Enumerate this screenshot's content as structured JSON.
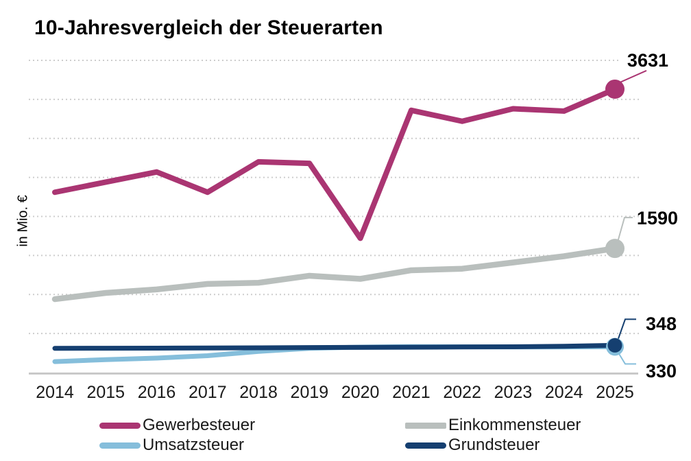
{
  "chart_data": {
    "type": "line",
    "title": "10-Jahresvergleich der Steuerarten",
    "ylabel": "in Mio. €",
    "categories": [
      "2014",
      "2015",
      "2016",
      "2017",
      "2018",
      "2019",
      "2020",
      "2021",
      "2022",
      "2023",
      "2024",
      "2025"
    ],
    "ylim": [
      0,
      4000
    ],
    "grid": {
      "interval": 500,
      "style": "dotted",
      "color": "#cdcdcd"
    },
    "axis_color": "#c9c9c9",
    "end_label_color": "#000000",
    "legend_position": "bottom-two-columns",
    "series": [
      {
        "name": "Gewerbesteuer",
        "color": "#aa3572",
        "end_label": "3631",
        "values": [
          2310,
          2440,
          2570,
          2310,
          2700,
          2680,
          1720,
          3360,
          3220,
          3380,
          3350,
          3631
        ]
      },
      {
        "name": "Einkommensteuer",
        "color": "#b9bfbd",
        "end_label": "1590",
        "values": [
          940,
          1020,
          1065,
          1135,
          1150,
          1240,
          1200,
          1310,
          1330,
          1410,
          1490,
          1590
        ]
      },
      {
        "name": "Umsatzsteuer",
        "color": "#85bedb",
        "end_label": "330",
        "values": [
          140,
          165,
          185,
          215,
          270,
          310,
          325,
          332,
          330,
          328,
          328,
          330
        ]
      },
      {
        "name": "Grundsteuer",
        "color": "#153f70",
        "end_label": "348",
        "values": [
          310,
          311,
          312,
          314,
          316,
          320,
          322,
          324,
          327,
          330,
          336,
          348
        ]
      }
    ]
  }
}
